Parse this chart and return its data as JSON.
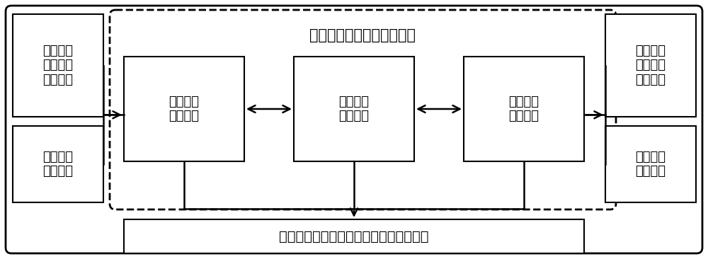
{
  "bg_color": "#ffffff",
  "title_platform": "特高压直流跨区域消纳平台",
  "box_send_model": "送端区域\n消纳模型",
  "box_dc_model": "直流线路\n运行模型",
  "box_recv_model": "受端区域\n消纳模型",
  "box_send_scene": "送端区域\n新能源预\n测场景集",
  "box_send_load": "送端区域\n负荷水平",
  "box_recv_scene": "受端区域\n新能源预\n测场景集",
  "box_recv_load": "受端区域\n负荷水平",
  "box_output": "两区域机组启停计划和直流线路输送计划",
  "font_size_title": 15,
  "font_size_box": 13,
  "font_size_output": 14,
  "line_color": "#000000",
  "lw_outer": 2.0,
  "lw_inner": 1.5
}
